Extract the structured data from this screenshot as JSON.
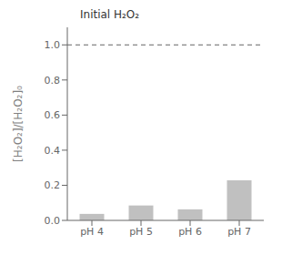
{
  "chart_data": {
    "type": "bar",
    "categories": [
      "pH 4",
      "pH 5",
      "pH 6",
      "pH 7"
    ],
    "values": [
      0.037,
      0.085,
      0.063,
      0.228
    ],
    "color": "#c0c0c0",
    "ylabel": "[H₂O₂]/[H₂O₂]₀",
    "ylim": [
      0,
      1.1
    ],
    "yticks": [
      {
        "value": 0,
        "label": "0.0"
      },
      0.2,
      0.4,
      0.6,
      0.8,
      {
        "value": 1,
        "label": "1.0"
      }
    ],
    "reference_line": {
      "value": 1,
      "line_style": "dashed",
      "color": "#666666"
    },
    "annotation": "Initial H₂O₂",
    "grid": false
  }
}
